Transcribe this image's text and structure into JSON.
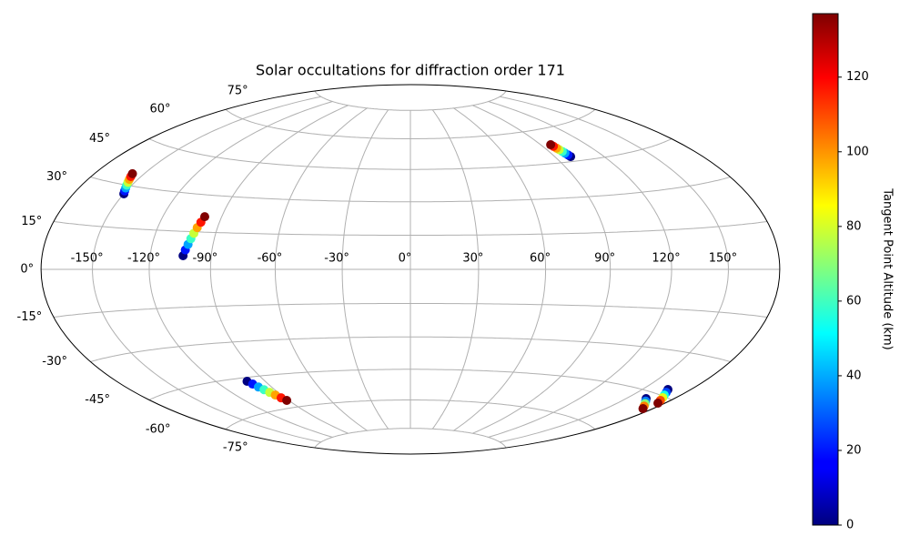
{
  "chart_data": {
    "type": "scatter",
    "projection": "hammer",
    "title": "Solar occultations for diffraction order 171",
    "colormap": "jet",
    "clim": [
      0,
      137
    ],
    "colorbar_label": "Tangent Point Altitude (km)",
    "cticks": [
      0,
      20,
      40,
      60,
      80,
      100,
      120
    ],
    "grid": true,
    "xticks": [
      {
        "value": -150,
        "label": "-150°"
      },
      {
        "value": -120,
        "label": "-120°"
      },
      {
        "value": -90,
        "label": "-90°"
      },
      {
        "value": -60,
        "label": "-60°"
      },
      {
        "value": -30,
        "label": "-30°"
      },
      {
        "value": 0,
        "label": "0°"
      },
      {
        "value": 30,
        "label": "30°"
      },
      {
        "value": 60,
        "label": "60°"
      },
      {
        "value": 90,
        "label": "90°"
      },
      {
        "value": 120,
        "label": "120°"
      },
      {
        "value": 150,
        "label": "150°"
      }
    ],
    "yticks": [
      {
        "value": -75,
        "label": "-75°"
      },
      {
        "value": -60,
        "label": "-60°"
      },
      {
        "value": -45,
        "label": "-45°"
      },
      {
        "value": -30,
        "label": "-30°"
      },
      {
        "value": -15,
        "label": "-15°"
      },
      {
        "value": 0,
        "label": "0°"
      },
      {
        "value": 15,
        "label": "15°"
      },
      {
        "value": 30,
        "label": "30°"
      },
      {
        "value": 45,
        "label": "45°"
      },
      {
        "value": 60,
        "label": "60°"
      },
      {
        "value": 75,
        "label": "75°"
      }
    ],
    "series": [
      {
        "x": [
          -150,
          -151,
          -152,
          -153,
          -154,
          -155,
          -156,
          -157
        ],
        "y": [
          27,
          28,
          29,
          30,
          31,
          32,
          33,
          34
        ],
        "values": [
          0,
          20,
          39,
          59,
          78,
          98,
          117,
          137
        ]
      },
      {
        "x": [
          -103.6,
          -102.9,
          -102.1,
          -101.4,
          -100.7,
          -100.0,
          -99.2,
          -98.5
        ],
        "y": [
          5.4,
          7.7,
          9.9,
          12.2,
          14.4,
          16.7,
          18.9,
          21.2
        ],
        "values": [
          0,
          20,
          39,
          59,
          78,
          98,
          117,
          137
        ]
      },
      {
        "x": [
          -101,
          -99.6,
          -98.3,
          -96.9,
          -95.5,
          -94.1,
          -92.8,
          -91.4
        ],
        "y": [
          -46.6,
          -48.0,
          -49.5,
          -50.9,
          -52.3,
          -53.7,
          -55.2,
          -56.6
        ],
        "values": [
          0,
          20,
          39,
          59,
          78,
          98,
          117,
          137
        ]
      },
      {
        "x": [
          99.7,
          99.3,
          98.8,
          98.4,
          97.9,
          97.5,
          97.0,
          96.6
        ],
        "y": [
          47.1,
          47.9,
          48.8,
          49.6,
          50.5,
          51.3,
          52.2,
          53.0
        ],
        "values": [
          0,
          20,
          39,
          59,
          78,
          98,
          117,
          137
        ]
      },
      {
        "x": [
          162.5,
          165.3,
          168.2,
          171.0,
          173.8
        ],
        "y": [
          -47.3,
          -48.0,
          -48.7,
          -49.4,
          -50.1
        ],
        "values": [
          0,
          34,
          69,
          103,
          137
        ]
      },
      {
        "x": [
          165.8,
          167.8,
          169.7,
          171.7,
          173.6,
          175.6
        ],
        "y": [
          -42.8,
          -43.7,
          -44.6,
          -45.4,
          -46.3,
          -47.2
        ],
        "values": [
          0,
          27,
          55,
          82,
          110,
          137
        ]
      }
    ]
  }
}
